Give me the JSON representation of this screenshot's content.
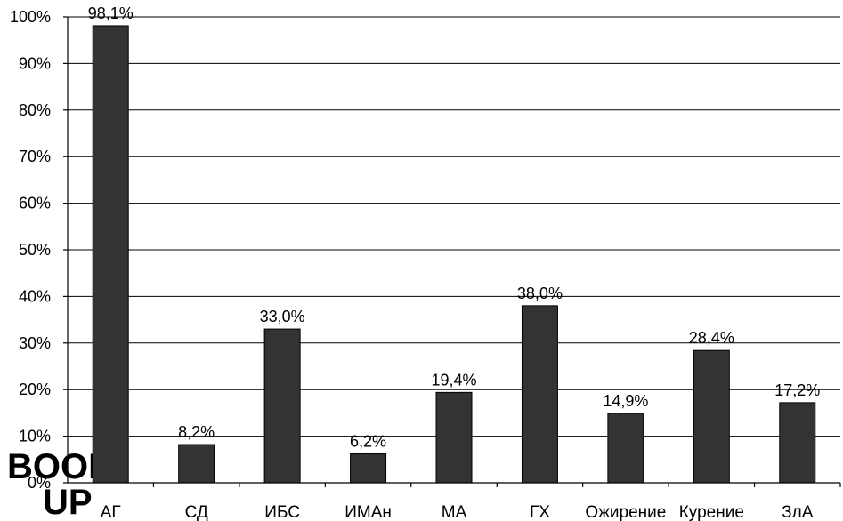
{
  "chart_data": {
    "type": "bar",
    "categories": [
      "АГ",
      "СД",
      "ИБС",
      "ИМАн",
      "МА",
      "ГХ",
      "Ожирение",
      "Курение",
      "ЗлА"
    ],
    "values": [
      98.1,
      8.2,
      33.0,
      6.2,
      19.4,
      38.0,
      14.9,
      28.4,
      17.2
    ],
    "data_labels": [
      "98,1%",
      "8,2%",
      "33,0%",
      "6,2%",
      "19,4%",
      "38,0%",
      "14,9%",
      "28,4%",
      "17,2%"
    ],
    "y_ticks": [
      "0%",
      "10%",
      "20%",
      "30%",
      "40%",
      "50%",
      "60%",
      "70%",
      "80%",
      "90%",
      "100%"
    ],
    "ylim": [
      0,
      100
    ],
    "title": "",
    "xlabel": "",
    "ylabel": "",
    "grid": true,
    "bar_color": "#333333"
  },
  "watermark": {
    "top": "BOOK",
    "bottom": "UP"
  }
}
